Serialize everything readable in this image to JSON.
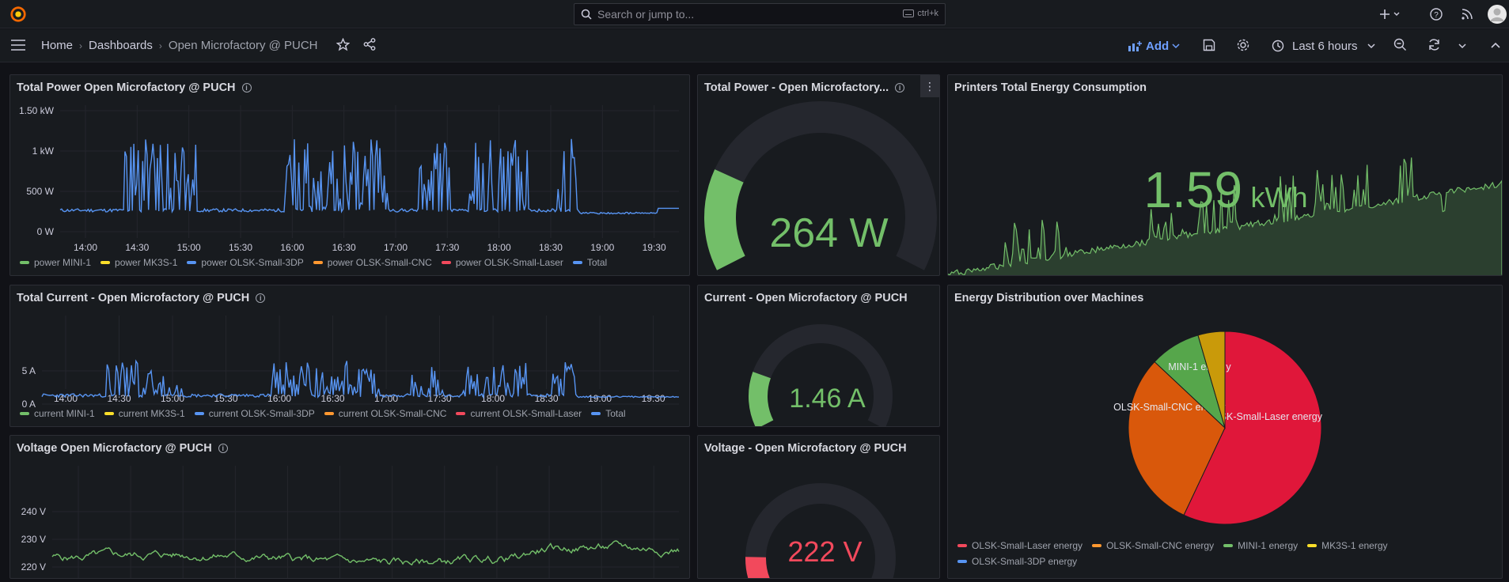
{
  "search": {
    "placeholder": "Search or jump to...",
    "shortcut": "ctrl+k"
  },
  "breadcrumb": {
    "home": "Home",
    "dashboards": "Dashboards",
    "current": "Open Microfactory @ PUCH"
  },
  "toolbar": {
    "add_label": "Add",
    "time_range": "Last 6 hours"
  },
  "colors": {
    "green": "#73bf69",
    "blue": "#5794f2",
    "yellow": "#fade2a",
    "orange": "#ff9830",
    "red": "#f2495c",
    "track": "#25272e"
  },
  "time_ticks": [
    "14:00",
    "14:30",
    "15:00",
    "15:30",
    "16:00",
    "16:30",
    "17:00",
    "17:30",
    "18:00",
    "18:30",
    "19:00",
    "19:30"
  ],
  "power_panel": {
    "title": "Total Power Open Microfactory @ PUCH",
    "y_ticks": [
      "1.50 kW",
      "1 kW",
      "500 W",
      "0 W"
    ],
    "legend": [
      {
        "label": "power MINI-1",
        "color": "green"
      },
      {
        "label": "power MK3S-1",
        "color": "yellow"
      },
      {
        "label": "power OLSK-Small-3DP",
        "color": "blue"
      },
      {
        "label": "power OLSK-Small-CNC",
        "color": "orange"
      },
      {
        "label": "power OLSK-Small-Laser",
        "color": "red"
      },
      {
        "label": "Total",
        "color": "blue"
      }
    ]
  },
  "power_gauge": {
    "title": "Total Power - Open Microfactory...",
    "value": "264 W",
    "fraction": 0.22
  },
  "energy_panel": {
    "title": "Printers Total Energy Consumption",
    "value": "1.59",
    "unit": "kWh"
  },
  "current_panel": {
    "title": "Total Current - Open Microfactory @ PUCH",
    "y_ticks": [
      "5 A",
      "0 A"
    ],
    "legend": [
      {
        "label": "current MINI-1",
        "color": "green"
      },
      {
        "label": "current MK3S-1",
        "color": "yellow"
      },
      {
        "label": "current OLSK-Small-3DP",
        "color": "blue"
      },
      {
        "label": "current OLSK-Small-CNC",
        "color": "orange"
      },
      {
        "label": "current OLSK-Small-Laser",
        "color": "red"
      },
      {
        "label": "Total",
        "color": "blue"
      }
    ]
  },
  "current_gauge": {
    "title": "Current - Open Microfactory @ PUCH",
    "value": "1.46 A",
    "fraction": 0.2
  },
  "distribution_panel": {
    "title": "Energy Distribution over Machines",
    "slices": [
      {
        "label": "OLSK-Small-Laser energy",
        "value": 57,
        "color": "#e0173a"
      },
      {
        "label": "OLSK-Small-CNC energy",
        "value": 30,
        "color": "#d9580b"
      },
      {
        "label": "MINI-1 energy",
        "value": 8.5,
        "color": "#56a64b"
      },
      {
        "label": "MK3S-1 energy",
        "value": 4.5,
        "color": "#c99a0a"
      },
      {
        "label": "OLSK-Small-3DP energy",
        "value": 0,
        "color": "#8ab8ff"
      }
    ],
    "legend": [
      {
        "label": "OLSK-Small-Laser energy",
        "color": "red"
      },
      {
        "label": "OLSK-Small-CNC energy",
        "color": "orange"
      },
      {
        "label": "MINI-1 energy",
        "color": "green"
      },
      {
        "label": "MK3S-1 energy",
        "color": "yellow"
      },
      {
        "label": "OLSK-Small-3DP energy",
        "color": "blue"
      }
    ]
  },
  "voltage_panel": {
    "title": "Voltage Open Microfactory @ PUCH",
    "y_ticks": [
      "240 V",
      "230 V",
      "220 V"
    ]
  },
  "voltage_gauge": {
    "title": "Voltage - Open Microfactory @ PUCH",
    "value": "222 V",
    "fraction": 0.12
  }
}
